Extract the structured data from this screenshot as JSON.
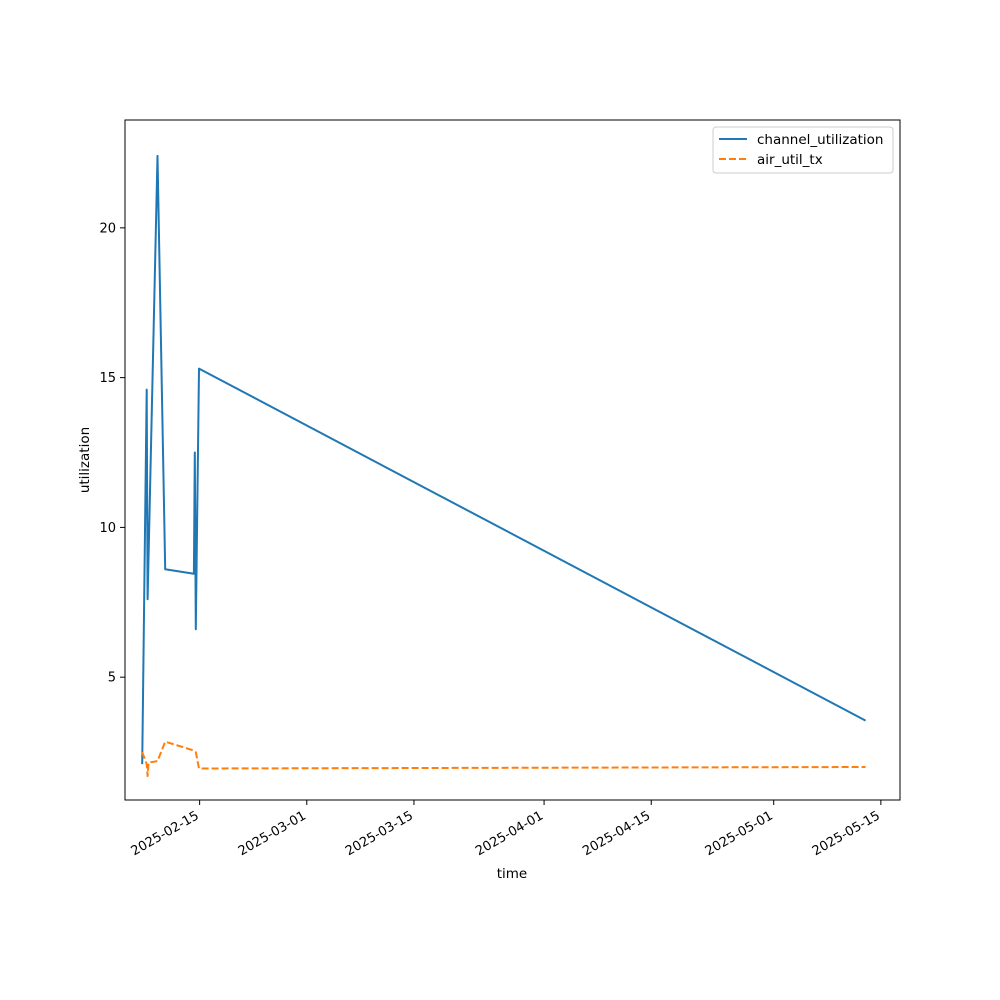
{
  "chart_data": {
    "type": "line",
    "title": "",
    "xlabel": "time",
    "ylabel": "utilization",
    "x_type": "date",
    "xlim": [
      "2025-02-05T06:00",
      "2025-05-17T12:00"
    ],
    "ylim": [
      0.9,
      23.6
    ],
    "x_ticks": [
      "2025-02-15",
      "2025-03-01",
      "2025-03-15",
      "2025-04-01",
      "2025-04-15",
      "2025-05-01",
      "2025-05-15"
    ],
    "y_ticks": [
      5,
      10,
      15,
      20
    ],
    "grid": false,
    "legend_position": "top-right",
    "series": [
      {
        "name": "channel_utilization",
        "color": "#1f77b4",
        "style": "solid",
        "points": [
          {
            "x": "2025-02-07T12:00",
            "y": 2.1
          },
          {
            "x": "2025-02-08T02:00",
            "y": 14.6
          },
          {
            "x": "2025-02-08T05:00",
            "y": 7.6
          },
          {
            "x": "2025-02-09T12:00",
            "y": 22.4
          },
          {
            "x": "2025-02-10T12:00",
            "y": 8.6
          },
          {
            "x": "2025-02-14T06:00",
            "y": 8.45
          },
          {
            "x": "2025-02-14T09:00",
            "y": 12.5
          },
          {
            "x": "2025-02-14T12:00",
            "y": 6.6
          },
          {
            "x": "2025-02-14T22:00",
            "y": 15.3
          },
          {
            "x": "2025-05-13T00:00",
            "y": 3.55
          }
        ]
      },
      {
        "name": "air_util_tx",
        "color": "#ff7f0e",
        "style": "dashed",
        "points": [
          {
            "x": "2025-02-07T12:00",
            "y": 2.5
          },
          {
            "x": "2025-02-08T02:00",
            "y": 2.1
          },
          {
            "x": "2025-02-08T05:00",
            "y": 1.7
          },
          {
            "x": "2025-02-08T08:00",
            "y": 2.15
          },
          {
            "x": "2025-02-09T12:00",
            "y": 2.2
          },
          {
            "x": "2025-02-10T12:00",
            "y": 2.85
          },
          {
            "x": "2025-02-14T06:00",
            "y": 2.55
          },
          {
            "x": "2025-02-14T12:00",
            "y": 2.5
          },
          {
            "x": "2025-02-14T22:00",
            "y": 1.95
          },
          {
            "x": "2025-05-13T00:00",
            "y": 2.0
          }
        ]
      }
    ]
  }
}
